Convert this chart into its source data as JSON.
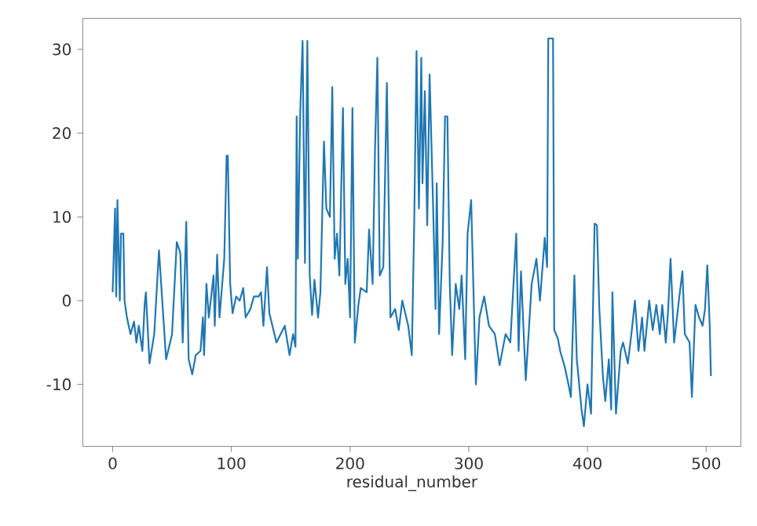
{
  "chart_data": {
    "type": "line",
    "xlabel": "residual_number",
    "x": [
      0,
      2,
      3,
      4,
      6,
      7,
      9,
      10,
      12,
      15,
      18,
      20,
      22,
      25,
      27,
      28,
      31,
      35,
      39,
      45,
      50,
      54,
      57,
      59,
      62,
      64,
      67,
      70,
      74,
      76,
      77,
      79,
      81,
      85,
      86,
      88,
      90,
      94,
      96,
      97,
      99,
      101,
      104,
      107,
      110,
      112,
      116,
      119,
      123,
      125,
      127,
      130,
      132,
      138,
      145,
      149,
      152,
      154,
      155,
      156,
      158,
      160,
      162,
      164,
      166,
      168,
      170,
      173,
      175,
      178,
      180,
      183,
      185,
      187,
      189,
      191,
      194,
      196,
      198,
      200,
      202,
      204,
      207,
      209,
      214,
      216,
      219,
      221,
      223,
      225,
      228,
      231,
      234,
      238,
      241,
      244,
      249,
      252,
      254,
      256,
      258,
      260,
      261,
      263,
      265,
      267,
      270,
      272,
      273,
      275,
      278,
      280,
      282,
      284,
      286,
      289,
      292,
      294,
      297,
      299,
      302,
      304,
      306,
      309,
      313,
      317,
      322,
      326,
      331,
      335,
      340,
      342,
      344,
      348,
      353,
      357,
      360,
      364,
      366,
      367,
      371,
      372,
      375,
      377,
      381,
      384,
      386,
      389,
      391,
      395,
      397,
      400,
      403,
      406,
      408,
      410,
      413,
      415,
      418,
      420,
      421,
      424,
      428,
      430,
      434,
      437,
      440,
      443,
      446,
      448,
      452,
      455,
      458,
      461,
      463,
      466,
      468,
      470,
      473,
      477,
      480,
      482,
      486,
      488,
      491,
      494,
      497,
      499,
      501,
      503,
      504
    ],
    "values": [
      1,
      11,
      0.5,
      12,
      0,
      8,
      8,
      0,
      -2,
      -4,
      -2.5,
      -5,
      -3,
      -6,
      -0.3,
      1,
      -7.5,
      -4,
      6,
      -7,
      -4,
      7,
      5.7,
      -5,
      9.4,
      -7,
      -8.8,
      -6.5,
      -6,
      -2,
      -6.5,
      2,
      -2,
      3,
      -3,
      5.5,
      -2,
      5,
      17.3,
      17.3,
      2,
      -1.5,
      0.5,
      0,
      1.5,
      -2,
      -1,
      0.5,
      0.5,
      1,
      -3,
      4,
      -1.5,
      -5,
      -3,
      -6.5,
      -4,
      -5.5,
      22,
      5,
      22.5,
      31,
      4.5,
      31,
      3,
      -1.7,
      2.5,
      -2,
      1,
      19,
      11,
      10,
      25.5,
      5,
      8,
      3,
      23,
      2,
      5,
      -2,
      23,
      -5,
      -0.5,
      1.5,
      1,
      8.5,
      2,
      18,
      29,
      3,
      4,
      26,
      -2,
      -1,
      -3.5,
      0,
      -3,
      -6.5,
      9,
      29.8,
      11,
      29,
      14,
      25,
      9,
      27,
      11,
      -1,
      14,
      -4,
      7,
      22,
      22,
      2,
      -6.5,
      2,
      -1,
      3,
      -7,
      8,
      12,
      1,
      -10,
      -2,
      0.5,
      -3,
      -4,
      -7.7,
      -4,
      -5,
      8,
      -6,
      3.5,
      -9.5,
      2,
      5,
      0,
      7.5,
      4,
      31.3,
      31.3,
      -3.5,
      -4.5,
      -6,
      -8,
      -10,
      -11.5,
      3,
      -7,
      -13,
      -15,
      -10,
      -13.5,
      9.2,
      9,
      -1,
      -9,
      -12,
      -7,
      -13,
      1,
      -13.5,
      -6,
      -5,
      -7.5,
      -4,
      0,
      -6,
      -2,
      -6,
      0,
      -3.5,
      -0.5,
      -4,
      -0.5,
      -5,
      -1,
      5,
      -5,
      0,
      3.5,
      -4,
      -5,
      -11.5,
      -0.5,
      -2,
      -3,
      -1,
      4.2,
      -3,
      -9
    ],
    "color": "#1f77b4",
    "xlim": [
      -25.2,
      529.2
    ],
    "ylim": [
      -17.4,
      33.7
    ],
    "xticks": [
      0,
      100,
      200,
      300,
      400,
      500
    ],
    "yticks": [
      -10,
      0,
      10,
      20,
      30
    ]
  }
}
